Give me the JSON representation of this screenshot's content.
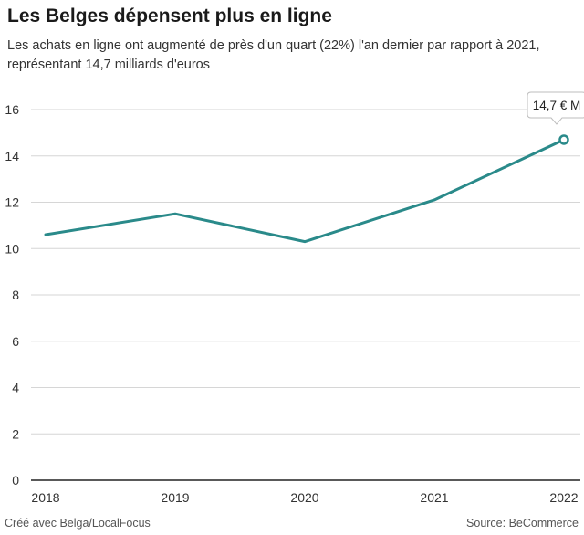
{
  "header": {
    "title": "Les Belges dépensent plus en ligne",
    "subtitle": "Les achats en ligne ont augmenté de près d'un quart (22%) l'an dernier par rapport à 2021, représentant 14,7 milliards d'euros"
  },
  "footer": {
    "credit": "Créé avec Belga/LocalFocus",
    "source": "Source:  BeCommerce"
  },
  "colors": {
    "line": "#2a8a8a",
    "grid": "#d6d6d6",
    "axis": "#222222"
  },
  "chart_data": {
    "type": "line",
    "x": [
      "2018",
      "2019",
      "2020",
      "2021",
      "2022"
    ],
    "series": [
      {
        "values": [
          10.6,
          11.5,
          10.3,
          12.1,
          14.7
        ]
      }
    ],
    "ylim": [
      0,
      16
    ],
    "yticks": [
      0,
      2,
      4,
      6,
      8,
      10,
      12,
      14,
      16
    ],
    "grid": true,
    "annotations": [
      {
        "x": "2022",
        "y": 14.7,
        "text": "14,7 € M"
      }
    ]
  }
}
